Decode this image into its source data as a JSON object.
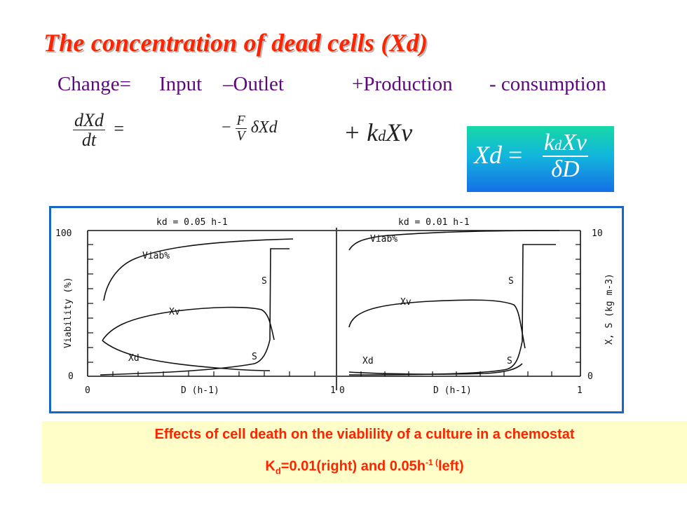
{
  "slide": {
    "title": "The concentration of dead cells (Xd)",
    "balance": {
      "change": "Change=",
      "input": "Input",
      "outlet": "–Outlet",
      "production": "+Production",
      "consumption": "- consumption"
    },
    "equation": {
      "lhs_num": "dXd",
      "lhs_den": "dt",
      "equals": "=",
      "minus": "−",
      "f": "F",
      "v": "V",
      "delta_xd": "δXd",
      "plus_kd": "+ k",
      "kd_sub": "d",
      "xv": "Xv"
    },
    "result": {
      "xd": "Xd",
      "equals": "=",
      "num_k": "k",
      "num_sub": "d",
      "num_xv": "Xv",
      "den": "δD"
    },
    "colors": {
      "title": "#ff2400",
      "text": "#5b0a7c",
      "frame": "#1767c8",
      "caption_bg": "#fffdc8"
    }
  },
  "figure": {
    "left_panel_title": "kd = 0.05 h-1",
    "right_panel_title": "kd = 0.01 h-1",
    "left_y_label": "Viability (%)",
    "right_y_label": "X, S (kg m-3)",
    "x_label_left": "D (h-1)",
    "x_label_right": "D (h-1)",
    "ticks": {
      "y_left_top": "100",
      "y_left_bottom": "0",
      "y_right_top": "10",
      "y_right_bottom": "0",
      "x_left_start": "0",
      "x_left_end": "1",
      "x_right_start": "0",
      "x_right_end": "1"
    },
    "curve_labels": {
      "viab": "Viab%",
      "xv": "Xv",
      "xd": "Xd",
      "s_upper": "S",
      "s_lower": "S"
    }
  },
  "caption": {
    "line1": "Effects of cell death on the viablility of a culture in a chemostat",
    "line2_prefix": "K",
    "line2_sub": "d",
    "line2_mid": "=0.01(right) and 0.05h",
    "line2_sup": "-1 (",
    "line2_end": "left)"
  }
}
